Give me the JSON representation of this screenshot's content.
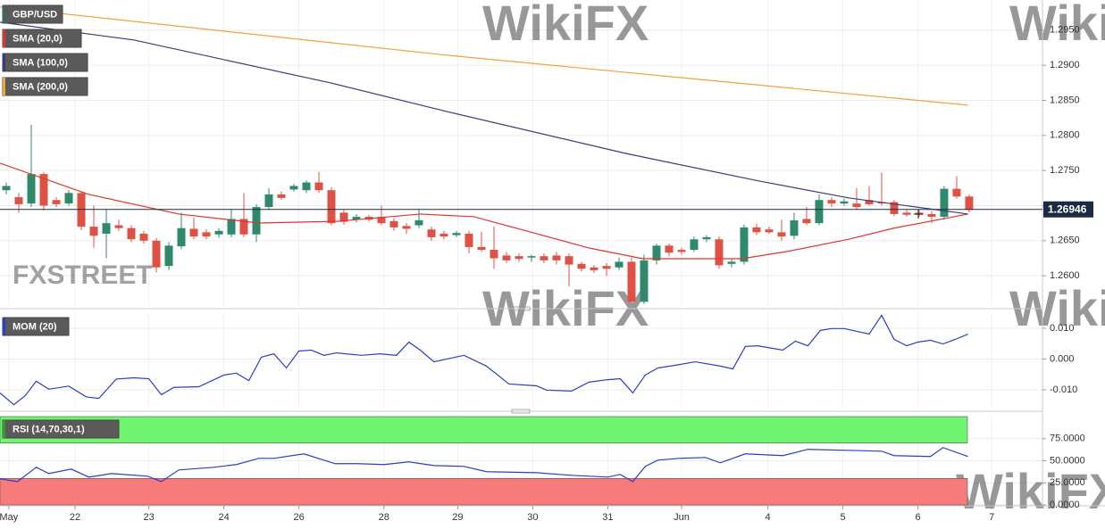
{
  "chart_data": [
    {
      "type": "candlestick",
      "name": "GBP/USD",
      "legend_color": "#3a6b5a",
      "up_color": "#2f8a6c",
      "down_color": "#de5246",
      "xlim": [
        -0.5,
        82.86
      ],
      "ylim": [
        1.2557,
        1.2993
      ],
      "yticks": [
        {
          "value": 1.295,
          "label": "1.2950"
        },
        {
          "value": 1.29,
          "label": "1.2900"
        },
        {
          "value": 1.285,
          "label": "1.2850"
        },
        {
          "value": 1.28,
          "label": "1.2800"
        },
        {
          "value": 1.275,
          "label": "1.2750"
        },
        {
          "value": 1.27,
          "label": "1.2700"
        },
        {
          "value": 1.265,
          "label": "1.2650"
        },
        {
          "value": 1.26,
          "label": "1.2600"
        }
      ],
      "grid": true,
      "last_price": {
        "value": 1.26946,
        "label": "1.26946"
      },
      "open": [
        1.2722,
        1.2712,
        1.2703,
        1.2745,
        1.2708,
        1.2703,
        1.2718,
        1.267,
        1.266,
        1.2672,
        1.2668,
        1.266,
        1.265,
        1.2614,
        1.2642,
        1.2667,
        1.2662,
        1.2659,
        1.2659,
        1.2681,
        1.2659,
        1.2698,
        1.2716,
        1.2723,
        1.2722,
        1.2733,
        1.2722,
        1.269,
        1.268,
        1.2684,
        1.2684,
        1.2678,
        1.2671,
        1.2672,
        1.2666,
        1.266,
        1.2658,
        1.266,
        1.2641,
        1.2637,
        1.2629,
        1.2628,
        1.2626,
        1.2628,
        1.2629,
        1.2628,
        1.2617,
        1.2612,
        1.2614,
        1.2612,
        1.262,
        1.2563,
        1.2622,
        1.2643,
        1.2637,
        1.2637,
        1.2652,
        1.2652,
        1.2617,
        1.262,
        1.2669,
        1.2666,
        1.2662,
        1.2657,
        1.2681,
        1.2675,
        1.2708,
        1.2703,
        1.2703,
        1.2708,
        1.2705,
        1.2705,
        1.269,
        1.269,
        1.2688,
        1.2684,
        1.2724,
        1.2713
      ],
      "high": [
        1.2733,
        1.2718,
        1.2815,
        1.2748,
        1.2712,
        1.2722,
        1.272,
        1.27,
        1.2695,
        1.268,
        1.2672,
        1.2664,
        1.2654,
        1.2648,
        1.269,
        1.2683,
        1.2666,
        1.2668,
        1.2695,
        1.2718,
        1.2702,
        1.2725,
        1.272,
        1.2731,
        1.2736,
        1.2748,
        1.2726,
        1.2694,
        1.2688,
        1.2687,
        1.27,
        1.2682,
        1.2675,
        1.2695,
        1.267,
        1.2664,
        1.2664,
        1.2664,
        1.2663,
        1.267,
        1.2634,
        1.2632,
        1.263,
        1.2632,
        1.2634,
        1.2632,
        1.262,
        1.2615,
        1.2618,
        1.2626,
        1.2626,
        1.263,
        1.2646,
        1.2646,
        1.264,
        1.2656,
        1.2658,
        1.2656,
        1.2624,
        1.2673,
        1.2674,
        1.267,
        1.268,
        1.269,
        1.2698,
        1.2716,
        1.2712,
        1.271,
        1.2725,
        1.2728,
        1.2747,
        1.2708,
        1.2694,
        1.2694,
        1.2692,
        1.2728,
        1.2742,
        1.2716
      ],
      "low": [
        1.2716,
        1.269,
        1.2698,
        1.2693,
        1.2698,
        1.27,
        1.2665,
        1.264,
        1.2625,
        1.2664,
        1.2648,
        1.2646,
        1.2605,
        1.2608,
        1.2638,
        1.2652,
        1.2652,
        1.2654,
        1.2655,
        1.2655,
        1.2648,
        1.2694,
        1.2708,
        1.272,
        1.2718,
        1.2718,
        1.2672,
        1.2673,
        1.2676,
        1.2677,
        1.2672,
        1.2664,
        1.266,
        1.2668,
        1.265,
        1.2652,
        1.2655,
        1.2632,
        1.2634,
        1.261,
        1.2618,
        1.262,
        1.262,
        1.2618,
        1.2616,
        1.2585,
        1.2606,
        1.2604,
        1.26,
        1.2608,
        1.256,
        1.256,
        1.2616,
        1.2628,
        1.263,
        1.2634,
        1.2648,
        1.261,
        1.2612,
        1.2616,
        1.2658,
        1.266,
        1.265,
        1.2652,
        1.2672,
        1.2672,
        1.2698,
        1.27,
        1.2694,
        1.27,
        1.27,
        1.2685,
        1.2684,
        1.2684,
        1.2675,
        1.268,
        1.271,
        1.269
      ],
      "close": [
        1.2728,
        1.2702,
        1.2745,
        1.27,
        1.2702,
        1.2718,
        1.267,
        1.2657,
        1.2675,
        1.2668,
        1.2652,
        1.265,
        1.2612,
        1.2643,
        1.2668,
        1.2656,
        1.2656,
        1.2664,
        1.2681,
        1.2659,
        1.2698,
        1.2716,
        1.2711,
        1.2728,
        1.2733,
        1.2722,
        1.2675,
        1.2677,
        1.2684,
        1.268,
        1.2675,
        1.2669,
        1.2667,
        1.2679,
        1.2655,
        1.2656,
        1.2661,
        1.2641,
        1.2637,
        1.2625,
        1.2622,
        1.2624,
        1.2628,
        1.2622,
        1.2622,
        1.2616,
        1.261,
        1.2608,
        1.261,
        1.262,
        1.2563,
        1.2622,
        1.2643,
        1.2633,
        1.2634,
        1.2652,
        1.2655,
        1.2615,
        1.262,
        1.2669,
        1.2662,
        1.2662,
        1.2656,
        1.2679,
        1.2675,
        1.2708,
        1.2703,
        1.2706,
        1.2698,
        1.2702,
        1.2703,
        1.2688,
        1.2687,
        1.2687,
        1.2684,
        1.2724,
        1.2713,
        1.2694
      ],
      "series": [
        {
          "name": "SMA (20,0)",
          "color": "#e0342c",
          "x": [
            -0.5,
            6.6,
            13.8,
            20.2,
            26.6,
            33.1,
            37.4,
            42.4,
            46.6,
            50.9,
            55.2,
            58.8,
            62.4,
            67.4,
            70.9,
            76.9
          ],
          "values": [
            1.27605,
            1.2716,
            1.2688,
            1.26752,
            1.26778,
            1.2688,
            1.26842,
            1.266,
            1.26396,
            1.26244,
            1.26244,
            1.26244,
            1.26345,
            1.26523,
            1.26676,
            1.2688
          ]
        },
        {
          "name": "SMA (100,0)",
          "color": "#3b3b7d",
          "x": [
            -0.5,
            10.2,
            25.9,
            35.2,
            49.5,
            60.2,
            67.4,
            76.9
          ],
          "values": [
            1.29614,
            1.2936,
            1.2875,
            1.28342,
            1.27745,
            1.2735,
            1.27109,
            1.2688
          ]
        },
        {
          "name": "SMA (200,0)",
          "color": "#f2a33a",
          "x": [
            -0.5,
            35.2,
            76.9
          ],
          "values": [
            1.29831,
            1.29144,
            1.28432
          ]
        }
      ]
    },
    {
      "type": "line",
      "xlim": [
        -0.5,
        82.86
      ],
      "ylim": [
        -0.0158,
        0.0152
      ],
      "yticks": [
        {
          "value": 0.01,
          "label": "0.010"
        },
        {
          "value": 0,
          "label": "0.000"
        },
        {
          "value": -0.01,
          "label": "-0.010"
        }
      ],
      "grid": true,
      "series": [
        {
          "name": "MOM (20)",
          "color": "#2a3ec8",
          "x": [
            -0.5,
            0.6,
            1.5,
            2.4,
            3.4,
            5,
            6.4,
            7.4,
            8.8,
            10.2,
            11.4,
            12.4,
            13.4,
            15.4,
            17.4,
            18.4,
            19.4,
            20.4,
            21.4,
            22.4,
            23.4,
            24.4,
            25.4,
            26.4,
            28.4,
            29.9,
            31.2,
            32.2,
            33.2,
            34.2,
            36.6,
            38.4,
            40.2,
            42.4,
            43.2,
            45.2,
            46.6,
            48.1,
            49.1,
            50.1,
            51.1,
            52.1,
            53.1,
            55.1,
            57.1,
            58.1,
            59.1,
            60.1,
            62.1,
            63.1,
            64.1,
            65.1,
            66,
            67,
            69,
            70,
            71,
            72,
            72.9,
            73.9,
            74.9,
            75.9,
            76.9
          ],
          "values": [
            -0.011,
            -0.0148,
            -0.012,
            -0.0072,
            -0.0098,
            -0.0088,
            -0.0123,
            -0.0128,
            -0.0065,
            -0.0061,
            -0.0064,
            -0.0116,
            -0.0092,
            -0.009,
            -0.0052,
            -0.0046,
            -0.007,
            0.0006,
            0.0017,
            -0.0029,
            0.0026,
            0.0029,
            0.0012,
            0.002,
            0.0012,
            0.0017,
            0.0012,
            0.0055,
            0.0026,
            -0.0009,
            0.0012,
            -0.0023,
            -0.0081,
            -0.0087,
            -0.0101,
            -0.0104,
            -0.0075,
            -0.0067,
            -0.0064,
            -0.011,
            -0.0052,
            -0.0029,
            -0.0023,
            -0.0009,
            -0.0023,
            -0.0032,
            0.0041,
            0.0043,
            0.0029,
            0.0058,
            0.0043,
            0.0093,
            0.0099,
            0.0099,
            0.0081,
            0.0142,
            0.0064,
            0.0043,
            0.0055,
            0.0061,
            0.0049,
            0.0064,
            0.0081
          ]
        }
      ]
    },
    {
      "type": "line",
      "xlim": [
        -0.5,
        82.86
      ],
      "ylim": [
        -1,
        102
      ],
      "yticks": [
        {
          "value": 75,
          "label": "75.0000"
        },
        {
          "value": 50,
          "label": "50.0000"
        },
        {
          "value": 25,
          "label": "25.0000"
        },
        {
          "value": 0,
          "label": "0.0000"
        }
      ],
      "grid": true,
      "bands": [
        {
          "from": 70,
          "to": 100,
          "color": "#6ff56f"
        },
        {
          "from": 0,
          "to": 30,
          "color": "#f77b7b"
        }
      ],
      "xticks": [
        {
          "value": 0.2,
          "label": "May"
        },
        {
          "value": 5.5,
          "label": "22"
        },
        {
          "value": 11.4,
          "label": "23"
        },
        {
          "value": 17.4,
          "label": "24"
        },
        {
          "value": 23.4,
          "label": "26"
        },
        {
          "value": 30.2,
          "label": "28"
        },
        {
          "value": 36.1,
          "label": "29"
        },
        {
          "value": 42.1,
          "label": "30"
        },
        {
          "value": 48.1,
          "label": "31"
        },
        {
          "value": 54,
          "label": "Jun"
        },
        {
          "value": 60.9,
          "label": "4"
        },
        {
          "value": 66.9,
          "label": "5"
        },
        {
          "value": 72.9,
          "label": "6"
        },
        {
          "value": 78.8,
          "label": "7"
        }
      ],
      "series": [
        {
          "name": "RSI (14,70,30,1)",
          "color": "#2a3ec8",
          "legend_color": "#2f9e2f",
          "x": [
            -0.5,
            0.9,
            2.4,
            3.4,
            5.2,
            6.6,
            8.4,
            11.3,
            12.4,
            13.8,
            16.6,
            18.4,
            20.2,
            21.4,
            23.8,
            26.3,
            28.1,
            30.2,
            32.2,
            34.2,
            36.6,
            38.4,
            42.4,
            45.2,
            48.1,
            49.1,
            50.1,
            51.1,
            52.1,
            53.8,
            55.9,
            57.1,
            59.1,
            62.1,
            64.1,
            67.4,
            70,
            71,
            73.9,
            74.9,
            76.9
          ],
          "values": [
            29.5,
            26.4,
            42.6,
            35.5,
            40.6,
            31.5,
            35.5,
            32.5,
            26.4,
            39.6,
            42.6,
            45.7,
            52.7,
            52.7,
            57.8,
            46.7,
            46.7,
            45.7,
            48.7,
            44.6,
            43.6,
            37.6,
            36.5,
            33.5,
            31.5,
            34.5,
            26.4,
            43.6,
            50.7,
            52.7,
            53.7,
            47.7,
            57.8,
            55.8,
            62.9,
            61.8,
            60.8,
            55.8,
            54.8,
            64.9,
            54.8
          ]
        }
      ]
    }
  ],
  "watermarks": {
    "fxstreet": "FXSTREET",
    "wikifx": "WikiFX"
  }
}
